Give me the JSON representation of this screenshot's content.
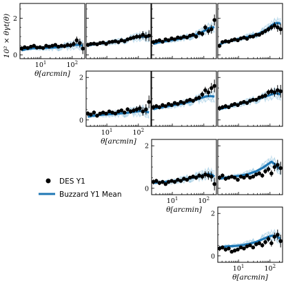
{
  "colors": {
    "data": "#000000",
    "mean": "#1f77b4",
    "sims": "#9ecae1",
    "frame": "#000000"
  },
  "legend": {
    "data_label": "DES Y1",
    "mean_label": "Buzzard Y1 Mean"
  },
  "ylabel": "$10^2 \\times \\theta\\gamma_t(\\theta)$",
  "ylabel_text": "10² × θγt(θ)",
  "xlabel_text": "θ[arcmin]",
  "chart_data": [
    {
      "type": "scatter",
      "row": 0,
      "col": 0,
      "show_yticks": true,
      "show_xticks": true,
      "ylim": [
        -0.2,
        2.8
      ],
      "xlim_arcmin": [
        2.2,
        250
      ],
      "yticks": [
        0,
        2
      ],
      "xticks": [
        10,
        100
      ],
      "x": [
        2.5,
        3.1,
        3.9,
        4.9,
        6.1,
        7.6,
        9.5,
        11.9,
        14.9,
        18.6,
        23.3,
        29.1,
        36.4,
        45.5,
        56.9,
        71.1,
        88.9,
        111,
        139,
        174,
        217
      ],
      "y": [
        0.35,
        0.42,
        0.38,
        0.45,
        0.5,
        0.4,
        0.42,
        0.38,
        0.5,
        0.45,
        0.5,
        0.55,
        0.45,
        0.5,
        0.48,
        0.55,
        0.52,
        0.6,
        0.8,
        0.65,
        0.35
      ],
      "yerr": [
        0.12,
        0.1,
        0.1,
        0.09,
        0.08,
        0.08,
        0.08,
        0.08,
        0.08,
        0.08,
        0.08,
        0.08,
        0.09,
        0.1,
        0.11,
        0.12,
        0.14,
        0.16,
        0.2,
        0.24,
        0.3
      ],
      "mean": [
        0.25,
        0.3,
        0.33,
        0.35,
        0.37,
        0.38,
        0.38,
        0.38,
        0.39,
        0.4,
        0.4,
        0.41,
        0.42,
        0.44,
        0.46,
        0.48,
        0.5,
        0.55,
        0.55,
        0.55,
        0.5
      ]
    },
    {
      "type": "scatter",
      "row": 0,
      "col": 1,
      "show_yticks": false,
      "show_xticks": false,
      "ylim": [
        -0.2,
        2.8
      ],
      "xlim_arcmin": [
        2.2,
        250
      ],
      "yticks": [
        0,
        2
      ],
      "xticks": [
        10,
        100
      ],
      "x": [
        2.5,
        3.1,
        3.9,
        4.9,
        6.1,
        7.6,
        9.5,
        11.9,
        14.9,
        18.6,
        23.3,
        29.1,
        36.4,
        45.5,
        56.9,
        71.1,
        88.9,
        111,
        139,
        174,
        217
      ],
      "y": [
        0.55,
        0.6,
        0.62,
        0.58,
        0.65,
        0.68,
        0.6,
        0.7,
        0.72,
        0.75,
        0.7,
        0.8,
        0.75,
        0.85,
        0.9,
        0.95,
        1.0,
        1.0,
        1.1,
        1.0,
        1.05
      ],
      "yerr": [
        0.12,
        0.1,
        0.1,
        0.09,
        0.08,
        0.08,
        0.08,
        0.08,
        0.08,
        0.08,
        0.08,
        0.08,
        0.09,
        0.1,
        0.11,
        0.12,
        0.14,
        0.16,
        0.2,
        0.24,
        0.3
      ],
      "mean": [
        0.5,
        0.55,
        0.58,
        0.6,
        0.62,
        0.64,
        0.65,
        0.67,
        0.69,
        0.71,
        0.73,
        0.76,
        0.8,
        0.84,
        0.88,
        0.92,
        0.96,
        1.0,
        1.0,
        1.0,
        0.98
      ]
    },
    {
      "type": "scatter",
      "row": 0,
      "col": 2,
      "show_yticks": false,
      "show_xticks": false,
      "ylim": [
        -0.2,
        2.8
      ],
      "xlim_arcmin": [
        2.2,
        250
      ],
      "yticks": [
        0,
        2
      ],
      "xticks": [
        10,
        100
      ],
      "x": [
        2.5,
        3.1,
        3.9,
        4.9,
        6.1,
        7.6,
        9.5,
        11.9,
        14.9,
        18.6,
        23.3,
        29.1,
        36.4,
        45.5,
        56.9,
        71.1,
        88.9,
        111,
        139,
        174,
        217
      ],
      "y": [
        0.7,
        0.75,
        0.8,
        0.72,
        0.85,
        0.8,
        0.9,
        0.85,
        0.95,
        0.92,
        1.0,
        0.95,
        1.05,
        1.1,
        1.0,
        1.2,
        1.15,
        1.5,
        1.3,
        1.4,
        1.9
      ],
      "yerr": [
        0.12,
        0.1,
        0.1,
        0.09,
        0.08,
        0.08,
        0.08,
        0.08,
        0.08,
        0.08,
        0.08,
        0.08,
        0.09,
        0.1,
        0.11,
        0.12,
        0.14,
        0.16,
        0.2,
        0.24,
        0.3
      ],
      "mean": [
        0.6,
        0.65,
        0.7,
        0.72,
        0.75,
        0.78,
        0.8,
        0.83,
        0.86,
        0.9,
        0.93,
        0.97,
        1.0,
        1.05,
        1.1,
        1.17,
        1.25,
        1.35,
        1.45,
        1.5,
        1.5
      ]
    },
    {
      "type": "scatter",
      "row": 0,
      "col": 3,
      "show_yticks": false,
      "show_xticks": false,
      "ylim": [
        -0.2,
        2.8
      ],
      "xlim_arcmin": [
        2.2,
        250
      ],
      "yticks": [
        0,
        2
      ],
      "xticks": [
        10,
        100
      ],
      "x": [
        2.5,
        3.1,
        3.9,
        4.9,
        6.1,
        7.6,
        9.5,
        11.9,
        14.9,
        18.6,
        23.3,
        29.1,
        36.4,
        45.5,
        56.9,
        71.1,
        88.9,
        111,
        139,
        174,
        217
      ],
      "y": [
        0.5,
        0.7,
        0.75,
        0.72,
        0.8,
        0.85,
        0.8,
        0.9,
        0.95,
        0.88,
        1.0,
        1.0,
        1.1,
        1.1,
        1.2,
        1.3,
        1.4,
        1.5,
        1.6,
        1.5,
        1.4
      ],
      "yerr": [
        0.12,
        0.1,
        0.1,
        0.09,
        0.08,
        0.08,
        0.08,
        0.08,
        0.08,
        0.08,
        0.08,
        0.08,
        0.09,
        0.1,
        0.11,
        0.12,
        0.14,
        0.16,
        0.2,
        0.24,
        0.3
      ],
      "mean": [
        0.55,
        0.65,
        0.7,
        0.74,
        0.78,
        0.82,
        0.86,
        0.9,
        0.94,
        0.98,
        1.02,
        1.07,
        1.12,
        1.18,
        1.25,
        1.35,
        1.45,
        1.6,
        1.7,
        1.75,
        1.7
      ]
    },
    {
      "type": "scatter",
      "row": 1,
      "col": 1,
      "show_yticks": true,
      "show_xticks": true,
      "ylim": [
        -0.3,
        2.3
      ],
      "xlim_arcmin": [
        2.2,
        250
      ],
      "yticks": [
        0,
        2
      ],
      "xticks": [
        10,
        100
      ],
      "x": [
        2.5,
        3.1,
        3.9,
        4.9,
        6.1,
        7.6,
        9.5,
        11.9,
        14.9,
        18.6,
        23.3,
        29.1,
        36.4,
        45.5,
        56.9,
        71.1,
        88.9,
        111,
        139,
        174,
        217
      ],
      "y": [
        0.3,
        0.25,
        0.35,
        0.2,
        0.3,
        0.35,
        0.3,
        0.4,
        0.35,
        0.3,
        0.4,
        0.45,
        0.35,
        0.5,
        0.4,
        0.45,
        0.5,
        0.55,
        0.4,
        0.5,
        0.85
      ],
      "yerr": [
        0.12,
        0.1,
        0.1,
        0.09,
        0.08,
        0.08,
        0.08,
        0.08,
        0.08,
        0.08,
        0.08,
        0.08,
        0.09,
        0.1,
        0.11,
        0.12,
        0.14,
        0.16,
        0.2,
        0.24,
        0.3
      ],
      "mean": [
        0.15,
        0.18,
        0.2,
        0.22,
        0.24,
        0.25,
        0.26,
        0.27,
        0.28,
        0.29,
        0.3,
        0.31,
        0.32,
        0.34,
        0.36,
        0.38,
        0.4,
        0.42,
        0.42,
        0.4,
        0.35
      ]
    },
    {
      "type": "scatter",
      "row": 1,
      "col": 2,
      "show_yticks": false,
      "show_xticks": false,
      "ylim": [
        -0.3,
        2.3
      ],
      "xlim_arcmin": [
        2.2,
        250
      ],
      "yticks": [
        0,
        2
      ],
      "xticks": [
        10,
        100
      ],
      "x": [
        2.5,
        3.1,
        3.9,
        4.9,
        6.1,
        7.6,
        9.5,
        11.9,
        14.9,
        18.6,
        23.3,
        29.1,
        36.4,
        45.5,
        56.9,
        71.1,
        88.9,
        111,
        139,
        174,
        217
      ],
      "y": [
        0.6,
        0.65,
        0.6,
        0.7,
        0.65,
        0.75,
        0.7,
        0.8,
        0.75,
        0.85,
        0.8,
        0.9,
        0.95,
        0.9,
        1.0,
        1.05,
        1.2,
        1.4,
        1.3,
        1.5,
        1.6
      ],
      "yerr": [
        0.12,
        0.1,
        0.1,
        0.09,
        0.08,
        0.08,
        0.08,
        0.08,
        0.08,
        0.08,
        0.08,
        0.08,
        0.09,
        0.1,
        0.11,
        0.12,
        0.14,
        0.16,
        0.2,
        0.24,
        0.3
      ],
      "mean": [
        0.5,
        0.55,
        0.58,
        0.6,
        0.63,
        0.65,
        0.68,
        0.7,
        0.73,
        0.76,
        0.79,
        0.82,
        0.86,
        0.9,
        0.95,
        1.0,
        1.05,
        1.1,
        1.12,
        1.12,
        1.1
      ]
    },
    {
      "type": "scatter",
      "row": 1,
      "col": 3,
      "show_yticks": false,
      "show_xticks": false,
      "ylim": [
        -0.3,
        2.3
      ],
      "xlim_arcmin": [
        2.2,
        250
      ],
      "yticks": [
        0,
        2
      ],
      "xticks": [
        10,
        100
      ],
      "x": [
        2.5,
        3.1,
        3.9,
        4.9,
        6.1,
        7.6,
        9.5,
        11.9,
        14.9,
        18.6,
        23.3,
        29.1,
        36.4,
        45.5,
        56.9,
        71.1,
        88.9,
        111,
        139,
        174,
        217
      ],
      "y": [
        0.55,
        0.6,
        0.65,
        0.6,
        0.7,
        0.75,
        0.7,
        0.8,
        0.85,
        0.8,
        0.9,
        0.95,
        0.95,
        1.05,
        1.1,
        1.15,
        1.3,
        1.35,
        1.3,
        1.4,
        1.35
      ],
      "yerr": [
        0.12,
        0.1,
        0.1,
        0.09,
        0.08,
        0.08,
        0.08,
        0.08,
        0.08,
        0.08,
        0.08,
        0.08,
        0.09,
        0.1,
        0.11,
        0.12,
        0.14,
        0.16,
        0.2,
        0.24,
        0.3
      ],
      "mean": [
        0.5,
        0.55,
        0.58,
        0.62,
        0.66,
        0.7,
        0.73,
        0.77,
        0.8,
        0.84,
        0.88,
        0.92,
        0.96,
        1.0,
        1.05,
        1.1,
        1.15,
        1.2,
        1.25,
        1.25,
        1.2
      ]
    },
    {
      "type": "scatter",
      "row": 2,
      "col": 2,
      "show_yticks": true,
      "show_xticks": true,
      "ylim": [
        -0.3,
        2.3
      ],
      "xlim_arcmin": [
        2.2,
        250
      ],
      "yticks": [
        0,
        2
      ],
      "xticks": [
        10,
        100
      ],
      "x": [
        2.5,
        3.1,
        3.9,
        4.9,
        6.1,
        7.6,
        9.5,
        11.9,
        14.9,
        18.6,
        23.3,
        29.1,
        36.4,
        45.5,
        56.9,
        71.1,
        88.9,
        111,
        139,
        174,
        217
      ],
      "y": [
        0.3,
        0.35,
        0.25,
        0.3,
        0.2,
        0.3,
        0.35,
        0.3,
        0.4,
        0.35,
        0.45,
        0.4,
        0.5,
        0.55,
        0.5,
        0.6,
        0.55,
        0.65,
        0.6,
        0.55,
        0.2
      ],
      "yerr": [
        0.12,
        0.1,
        0.1,
        0.09,
        0.08,
        0.08,
        0.08,
        0.08,
        0.08,
        0.08,
        0.08,
        0.08,
        0.09,
        0.1,
        0.11,
        0.12,
        0.14,
        0.16,
        0.2,
        0.24,
        0.3
      ],
      "mean": [
        0.25,
        0.27,
        0.28,
        0.29,
        0.3,
        0.31,
        0.32,
        0.34,
        0.36,
        0.38,
        0.41,
        0.44,
        0.47,
        0.5,
        0.53,
        0.56,
        0.6,
        0.65,
        0.68,
        0.65,
        0.55
      ]
    },
    {
      "type": "scatter",
      "row": 2,
      "col": 3,
      "show_yticks": false,
      "show_xticks": false,
      "ylim": [
        -0.3,
        2.3
      ],
      "xlim_arcmin": [
        2.2,
        250
      ],
      "yticks": [
        0,
        2
      ],
      "xticks": [
        10,
        100
      ],
      "x": [
        2.5,
        3.1,
        3.9,
        4.9,
        6.1,
        7.6,
        9.5,
        11.9,
        14.9,
        18.6,
        23.3,
        29.1,
        36.4,
        45.5,
        56.9,
        71.1,
        88.9,
        111,
        139,
        174,
        217
      ],
      "y": [
        0.5,
        0.6,
        0.45,
        0.5,
        0.55,
        0.5,
        0.4,
        0.55,
        0.5,
        0.6,
        0.5,
        0.55,
        0.65,
        0.7,
        0.6,
        0.8,
        0.9,
        0.7,
        1.0,
        1.1,
        0.95
      ],
      "yerr": [
        0.12,
        0.1,
        0.1,
        0.09,
        0.08,
        0.08,
        0.08,
        0.08,
        0.08,
        0.08,
        0.08,
        0.08,
        0.09,
        0.1,
        0.11,
        0.12,
        0.14,
        0.16,
        0.2,
        0.24,
        0.3
      ],
      "mean": [
        0.45,
        0.48,
        0.5,
        0.52,
        0.54,
        0.56,
        0.58,
        0.6,
        0.63,
        0.66,
        0.7,
        0.75,
        0.8,
        0.88,
        0.95,
        1.05,
        1.15,
        1.25,
        1.15,
        1.0,
        0.9
      ]
    },
    {
      "type": "scatter",
      "row": 3,
      "col": 3,
      "show_yticks": true,
      "show_xticks": true,
      "ylim": [
        -0.3,
        2.3
      ],
      "xlim_arcmin": [
        2.2,
        250
      ],
      "yticks": [
        0,
        2
      ],
      "xticks": [
        10,
        100
      ],
      "x": [
        2.5,
        3.1,
        3.9,
        4.9,
        6.1,
        7.6,
        9.5,
        11.9,
        14.9,
        18.6,
        23.3,
        29.1,
        36.4,
        45.5,
        56.9,
        71.1,
        88.9,
        111,
        139,
        174,
        217
      ],
      "y": [
        0.35,
        0.4,
        0.3,
        0.35,
        0.2,
        0.25,
        0.3,
        0.4,
        0.35,
        0.45,
        0.5,
        0.4,
        0.55,
        0.6,
        0.5,
        0.65,
        0.8,
        0.6,
        0.9,
        1.0,
        0.7
      ],
      "yerr": [
        0.12,
        0.1,
        0.1,
        0.09,
        0.08,
        0.08,
        0.08,
        0.08,
        0.08,
        0.08,
        0.08,
        0.08,
        0.09,
        0.1,
        0.11,
        0.12,
        0.14,
        0.16,
        0.2,
        0.24,
        0.3
      ],
      "mean": [
        0.4,
        0.42,
        0.44,
        0.45,
        0.46,
        0.47,
        0.48,
        0.5,
        0.52,
        0.55,
        0.58,
        0.62,
        0.66,
        0.72,
        0.78,
        0.84,
        0.9,
        0.95,
        0.95,
        0.9,
        0.8
      ]
    }
  ]
}
